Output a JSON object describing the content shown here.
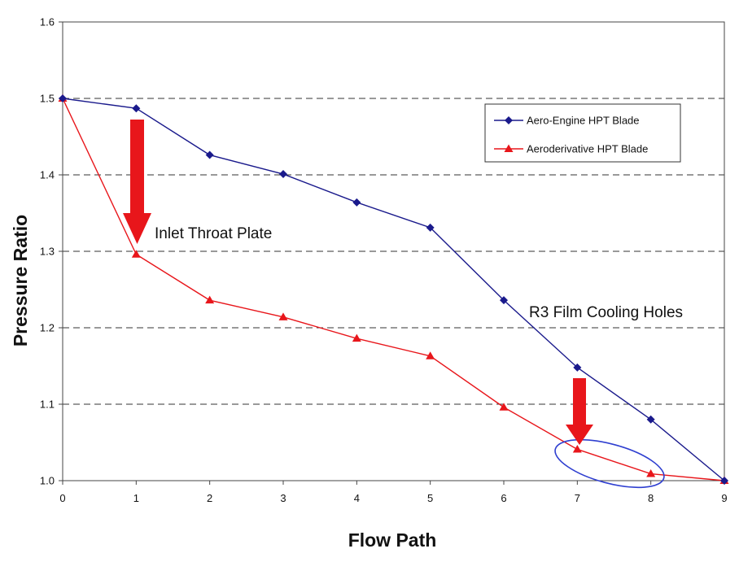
{
  "chart_data": {
    "type": "line",
    "x": [
      0,
      1,
      2,
      3,
      4,
      5,
      6,
      7,
      8,
      9
    ],
    "xlabel": "Flow Path",
    "ylabel": "Pressure Ratio",
    "xlim": [
      0,
      9
    ],
    "ylim": [
      1.0,
      1.6
    ],
    "x_ticks": [
      "0",
      "1",
      "2",
      "3",
      "4",
      "5",
      "6",
      "7",
      "8",
      "9"
    ],
    "y_ticks": [
      "1.0",
      "1.1",
      "1.2",
      "1.3",
      "1.4",
      "1.5",
      "1.6"
    ],
    "grid": "horizontal dashed",
    "legend_position": "top-right",
    "series": [
      {
        "name": "Aero-Engine HPT Blade",
        "color": "#1a1a8c",
        "marker": "diamond",
        "values": [
          1.5,
          1.487,
          1.426,
          1.401,
          1.364,
          1.331,
          1.236,
          1.148,
          1.08,
          1.0
        ]
      },
      {
        "name": "Aeroderivative HPT Blade",
        "color": "#e8161b",
        "marker": "triangle",
        "values": [
          1.5,
          1.296,
          1.236,
          1.214,
          1.186,
          1.163,
          1.096,
          1.041,
          1.009,
          1.0
        ]
      }
    ],
    "annotations": [
      {
        "text": "Inlet Throat Plate",
        "target_x": 1,
        "target_y": 1.296,
        "marker": "red-down-arrow"
      },
      {
        "text": "R3 Film Cooling Holes",
        "target_x": 7,
        "target_y": 1.041,
        "marker": "red-down-arrow"
      }
    ],
    "highlight": {
      "marker": "blue-ellipse",
      "x_range": [
        6.7,
        8.2
      ]
    }
  }
}
